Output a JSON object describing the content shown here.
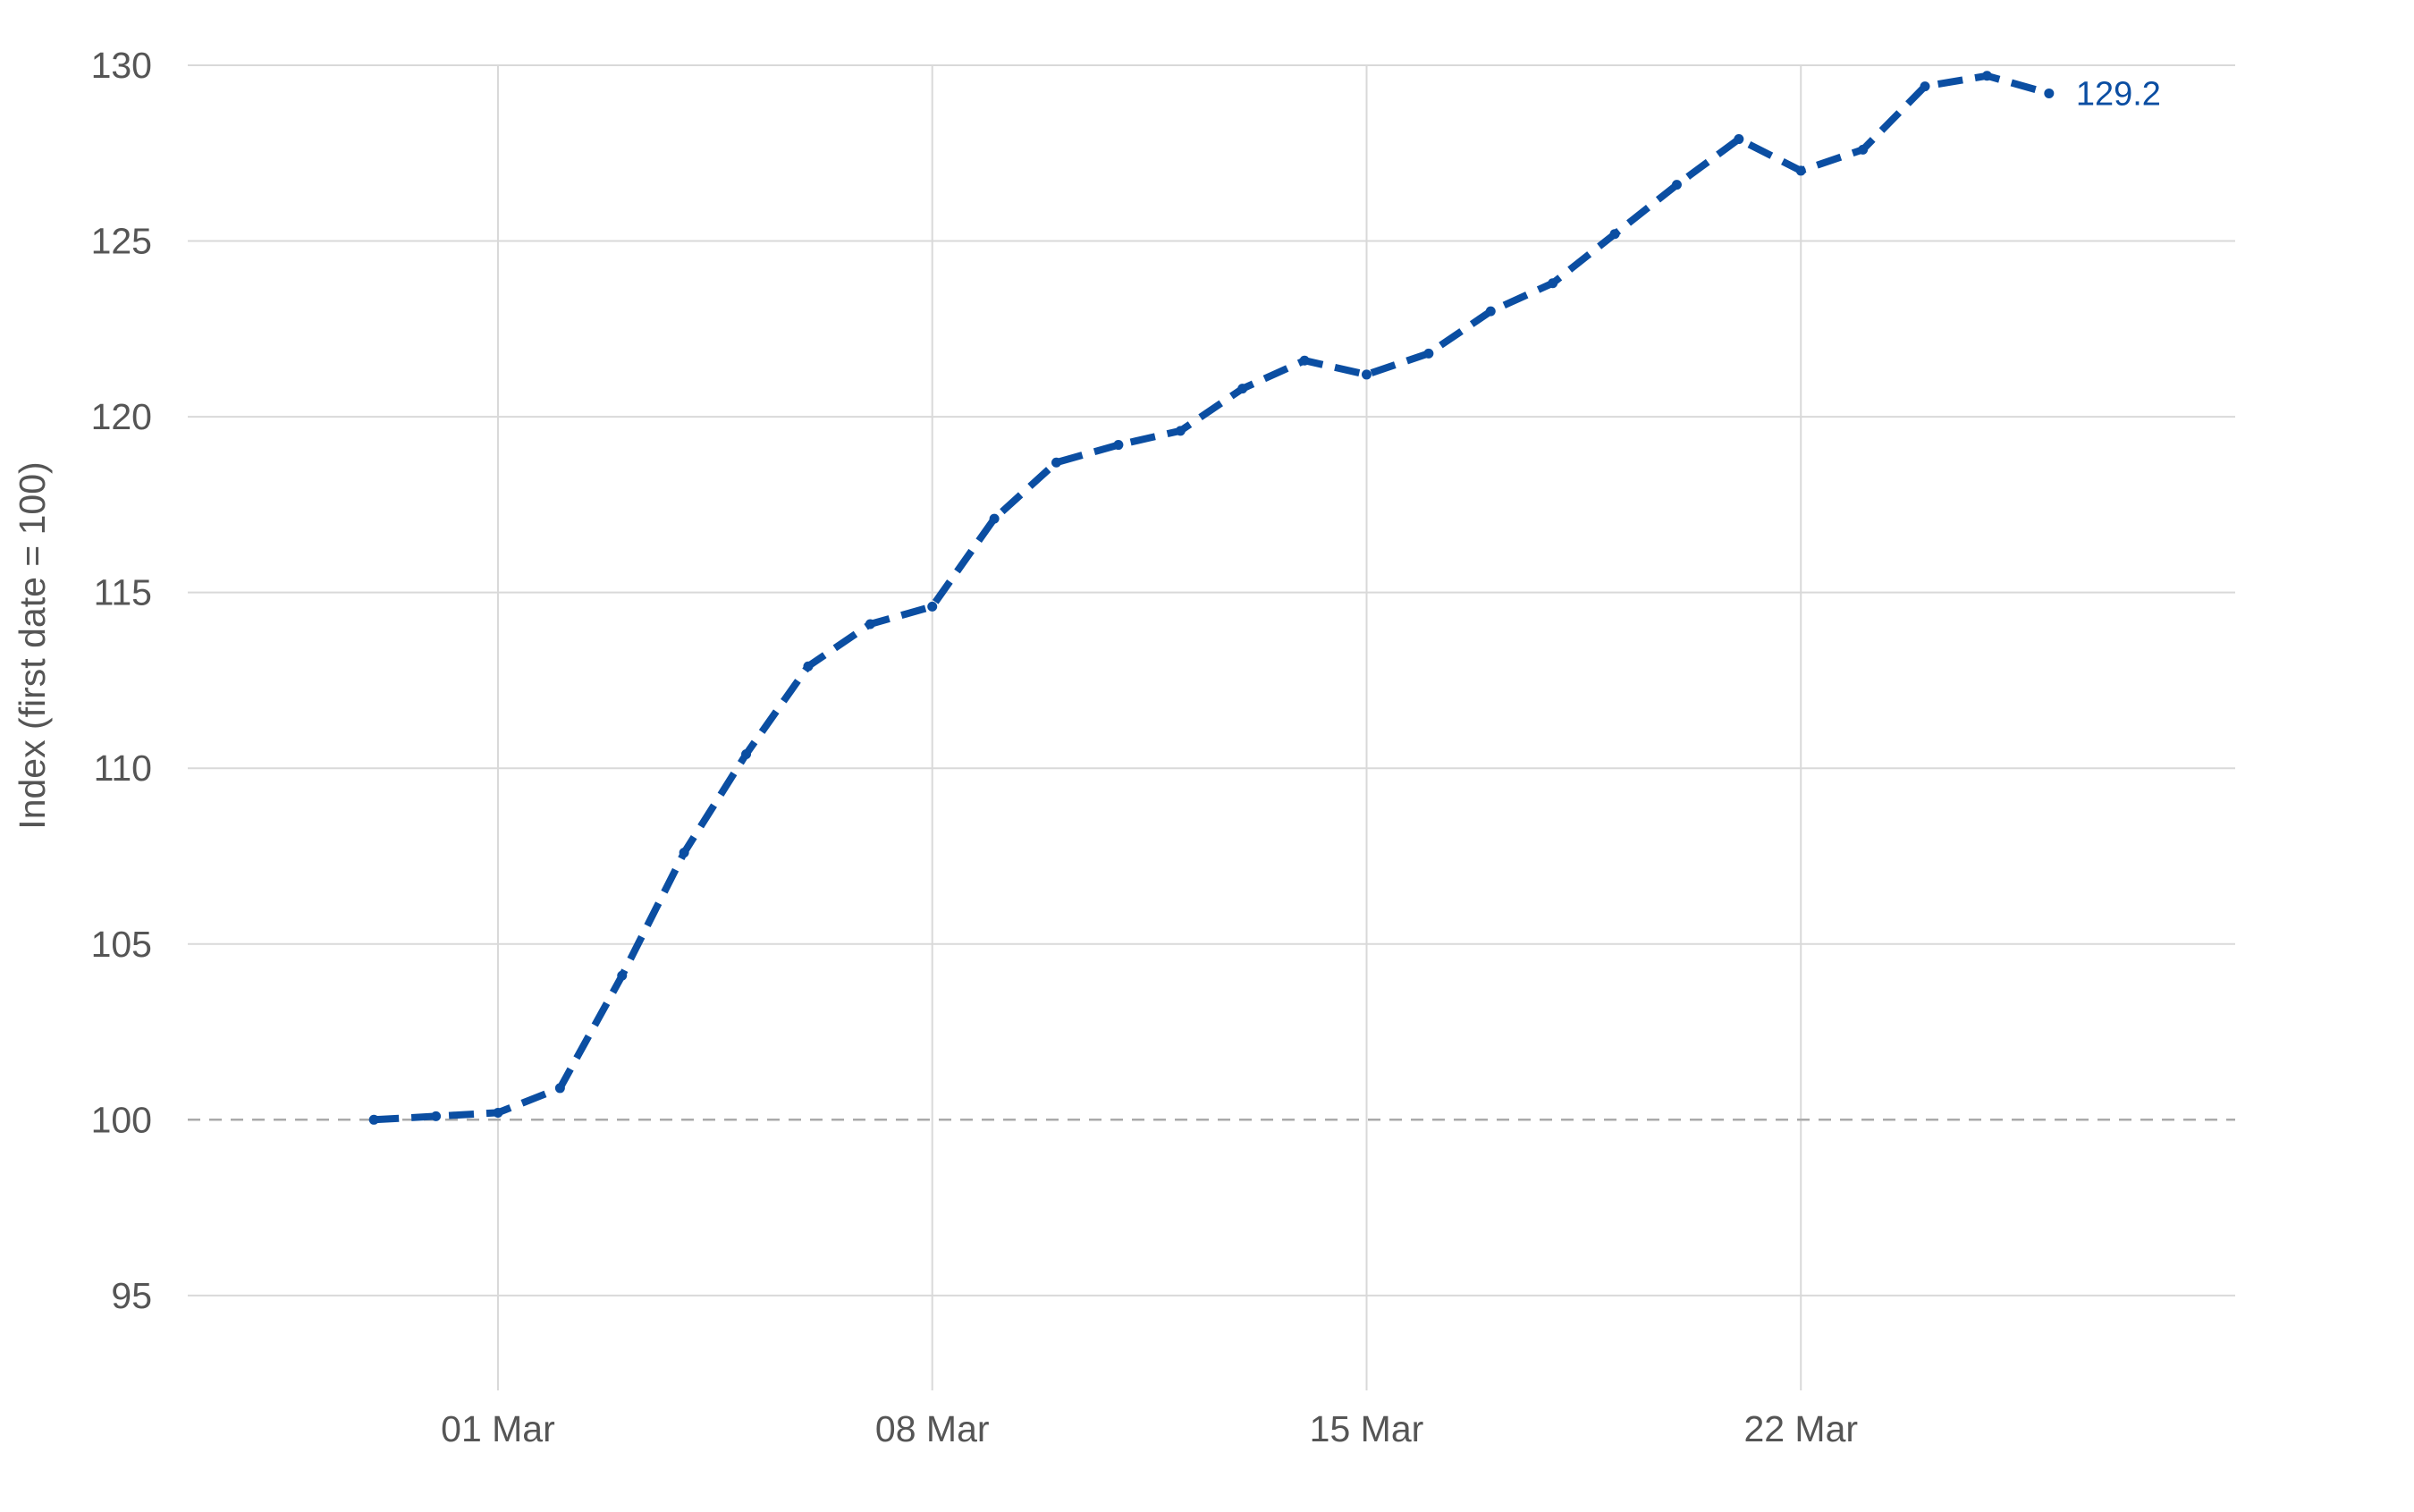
{
  "chart_data": {
    "type": "line",
    "title": "",
    "xlabel": "",
    "ylabel": "Index (first date = 100)",
    "x_tick_labels": [
      "01 Mar",
      "08 Mar",
      "15 Mar",
      "22 Mar"
    ],
    "x_tick_dates": [
      "2021-03-01",
      "2021-03-08",
      "2021-03-15",
      "2021-03-22"
    ],
    "xlim": [
      "2021-02-24",
      "2021-03-29"
    ],
    "y_ticks": [
      95,
      100,
      105,
      110,
      115,
      120,
      125,
      130
    ],
    "ylim": [
      92.3,
      130
    ],
    "reference_line": {
      "y": 100,
      "style": "dashed"
    },
    "grid": true,
    "line_style": "dashed",
    "line_color": "#0b4ea2",
    "end_label": "129.2",
    "series": [
      {
        "x": [
          "2021-02-27",
          "2021-02-28",
          "2021-03-01",
          "2021-03-02",
          "2021-03-03",
          "2021-03-04",
          "2021-03-05",
          "2021-03-06",
          "2021-03-07",
          "2021-03-08",
          "2021-03-09",
          "2021-03-10",
          "2021-03-11",
          "2021-03-12",
          "2021-03-13",
          "2021-03-14",
          "2021-03-15",
          "2021-03-16",
          "2021-03-17",
          "2021-03-18",
          "2021-03-19",
          "2021-03-20",
          "2021-03-21",
          "2021-03-22",
          "2021-03-23",
          "2021-03-24",
          "2021-03-25",
          "2021-03-26"
        ],
        "values": [
          100.0,
          100.1,
          100.2,
          100.9,
          104.1,
          107.6,
          110.4,
          112.9,
          114.1,
          114.6,
          117.1,
          118.7,
          119.2,
          119.6,
          120.8,
          121.6,
          121.2,
          121.8,
          123.0,
          123.8,
          125.2,
          126.6,
          127.9,
          127.0,
          127.6,
          129.4,
          129.7,
          129.2
        ]
      }
    ]
  },
  "colors": {
    "series": "#0b4ea2",
    "grid": "#d9d9d9",
    "reference": "#aaaaaa",
    "text": "#555555"
  }
}
